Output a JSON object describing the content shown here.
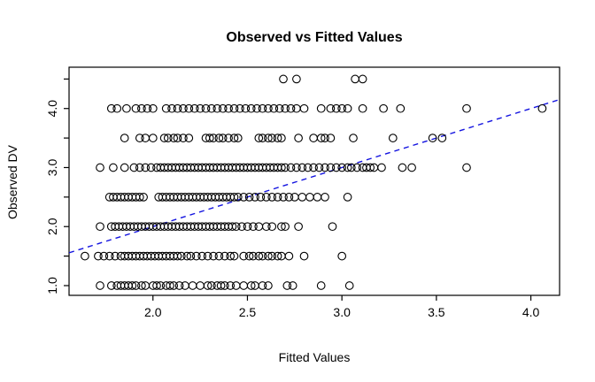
{
  "page": {
    "background": "#FFFFFF"
  },
  "chart_data": {
    "type": "scatter",
    "title": "Observed vs Fitted Values",
    "xlabel": "Fitted Values",
    "ylabel": "Observed DV",
    "xlim": [
      1.556,
      4.152
    ],
    "ylim": [
      0.835,
      4.7
    ],
    "x_ticks": [
      2.0,
      2.5,
      3.0,
      3.5,
      4.0
    ],
    "x_tick_labels": [
      "2.0",
      "2.5",
      "3.0",
      "3.5",
      "4.0"
    ],
    "y_ticks": [
      1.0,
      1.5,
      2.0,
      2.5,
      3.0,
      3.5,
      4.0,
      4.5
    ],
    "y_tick_labels": [
      "1.0",
      "",
      "2.0",
      "",
      "3.0",
      "",
      "4.0",
      ""
    ],
    "grid": "off",
    "legend": "none",
    "axis_color": "#000000",
    "marker": {
      "shape": "open-circle",
      "color": "#000000",
      "radius_px": 4.3
    },
    "reference_line": {
      "name": "identity-line",
      "slope": 1,
      "intercept": 0,
      "color": "#1414E0",
      "style": "dashed"
    },
    "series_name": "observed-vs-fitted-points",
    "rows": [
      {
        "y": 1.0,
        "x": [
          1.72,
          1.78,
          1.81,
          1.83,
          1.85,
          1.87,
          1.89,
          1.91,
          1.94,
          1.96,
          2.0,
          2.02,
          2.04,
          2.07,
          2.09,
          2.11,
          2.14,
          2.17,
          2.21,
          2.25,
          2.29,
          2.31,
          2.34,
          2.36,
          2.38,
          2.41,
          2.44,
          2.48,
          2.52,
          2.54,
          2.58,
          2.61,
          2.71,
          2.74,
          2.89,
          3.04
        ]
      },
      {
        "y": 1.5,
        "x": [
          1.64,
          1.71,
          1.74,
          1.77,
          1.8,
          1.83,
          1.85,
          1.87,
          1.89,
          1.91,
          1.93,
          1.95,
          1.97,
          1.99,
          2.01,
          2.03,
          2.05,
          2.07,
          2.09,
          2.11,
          2.13,
          2.15,
          2.18,
          2.2,
          2.23,
          2.26,
          2.29,
          2.32,
          2.35,
          2.38,
          2.41,
          2.43,
          2.48,
          2.51,
          2.53,
          2.56,
          2.58,
          2.61,
          2.63,
          2.66,
          2.68,
          2.72,
          2.8,
          3.0
        ]
      },
      {
        "y": 2.0,
        "x": [
          1.72,
          1.78,
          1.8,
          1.82,
          1.84,
          1.86,
          1.88,
          1.9,
          1.92,
          1.94,
          1.96,
          1.98,
          2.0,
          2.02,
          2.04,
          2.06,
          2.08,
          2.1,
          2.12,
          2.14,
          2.16,
          2.18,
          2.2,
          2.22,
          2.24,
          2.26,
          2.28,
          2.3,
          2.32,
          2.34,
          2.36,
          2.38,
          2.4,
          2.42,
          2.44,
          2.47,
          2.5,
          2.53,
          2.56,
          2.6,
          2.63,
          2.68,
          2.7,
          2.77,
          2.95
        ]
      },
      {
        "y": 2.5,
        "x": [
          1.77,
          1.79,
          1.81,
          1.83,
          1.85,
          1.87,
          1.89,
          1.91,
          1.93,
          1.95,
          2.03,
          2.05,
          2.07,
          2.09,
          2.11,
          2.13,
          2.15,
          2.17,
          2.19,
          2.21,
          2.23,
          2.25,
          2.27,
          2.29,
          2.31,
          2.33,
          2.35,
          2.37,
          2.39,
          2.41,
          2.43,
          2.45,
          2.48,
          2.51,
          2.54,
          2.57,
          2.6,
          2.63,
          2.66,
          2.69,
          2.72,
          2.75,
          2.79,
          2.83,
          2.87,
          2.91,
          3.03
        ]
      },
      {
        "y": 3.0,
        "x": [
          1.72,
          1.79,
          1.85,
          1.9,
          1.93,
          1.96,
          1.99,
          2.02,
          2.04,
          2.06,
          2.08,
          2.1,
          2.12,
          2.14,
          2.16,
          2.18,
          2.2,
          2.22,
          2.24,
          2.26,
          2.28,
          2.3,
          2.32,
          2.34,
          2.36,
          2.38,
          2.4,
          2.42,
          2.44,
          2.46,
          2.48,
          2.5,
          2.52,
          2.54,
          2.56,
          2.58,
          2.6,
          2.62,
          2.64,
          2.66,
          2.68,
          2.7,
          2.73,
          2.76,
          2.79,
          2.82,
          2.85,
          2.88,
          2.91,
          2.94,
          2.97,
          3.0,
          3.03,
          3.05,
          3.08,
          3.11,
          3.13,
          3.15,
          3.17,
          3.21,
          3.32,
          3.37,
          3.66
        ]
      },
      {
        "y": 3.5,
        "x": [
          1.85,
          1.93,
          1.96,
          2.0,
          2.06,
          2.08,
          2.11,
          2.13,
          2.16,
          2.19,
          2.28,
          2.3,
          2.32,
          2.35,
          2.37,
          2.4,
          2.43,
          2.45,
          2.56,
          2.58,
          2.61,
          2.63,
          2.66,
          2.68,
          2.77,
          2.85,
          2.89,
          2.91,
          2.94,
          3.06,
          3.27,
          3.48,
          3.53
        ]
      },
      {
        "y": 4.0,
        "x": [
          1.78,
          1.81,
          1.86,
          1.91,
          1.94,
          1.97,
          2.0,
          2.07,
          2.1,
          2.13,
          2.16,
          2.19,
          2.22,
          2.25,
          2.28,
          2.31,
          2.34,
          2.37,
          2.4,
          2.43,
          2.46,
          2.49,
          2.52,
          2.55,
          2.58,
          2.61,
          2.64,
          2.67,
          2.7,
          2.73,
          2.76,
          2.8,
          2.89,
          2.94,
          2.97,
          3.0,
          3.03,
          3.11,
          3.22,
          3.31,
          3.66,
          4.06
        ]
      },
      {
        "y": 4.5,
        "x": [
          2.69,
          2.76,
          3.07,
          3.11
        ]
      }
    ]
  }
}
